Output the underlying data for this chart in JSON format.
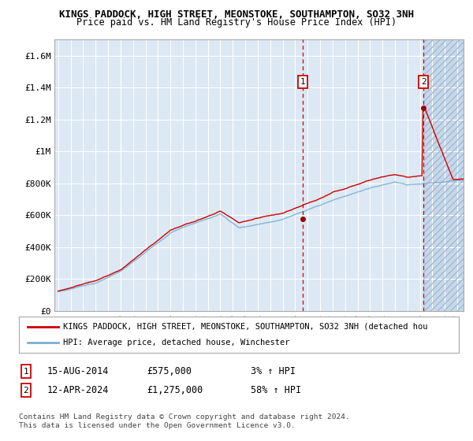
{
  "title1": "KINGS PADDOCK, HIGH STREET, MEONSTOKE, SOUTHAMPTON, SO32 3NH",
  "title2": "Price paid vs. HM Land Registry's House Price Index (HPI)",
  "ylim": [
    0,
    1700000
  ],
  "xlim_start": 1994.7,
  "xlim_end": 2027.5,
  "yticks": [
    0,
    200000,
    400000,
    600000,
    800000,
    1000000,
    1200000,
    1400000,
    1600000
  ],
  "ytick_labels": [
    "£0",
    "£200K",
    "£400K",
    "£600K",
    "£800K",
    "£1M",
    "£1.2M",
    "£1.4M",
    "£1.6M"
  ],
  "xticks": [
    1995,
    1996,
    1997,
    1998,
    1999,
    2000,
    2001,
    2002,
    2003,
    2004,
    2005,
    2006,
    2007,
    2008,
    2009,
    2010,
    2011,
    2012,
    2013,
    2014,
    2015,
    2016,
    2017,
    2018,
    2019,
    2020,
    2021,
    2022,
    2023,
    2024,
    2025,
    2026,
    2027
  ],
  "marker1_x": 2014.62,
  "marker1_y": 575000,
  "marker2_x": 2024.28,
  "marker2_y": 1275000,
  "marker1_date": "15-AUG-2014",
  "marker1_price": "£575,000",
  "marker1_hpi": "3% ↑ HPI",
  "marker2_date": "12-APR-2024",
  "marker2_price": "£1,275,000",
  "marker2_hpi": "58% ↑ HPI",
  "hatch_start": 2024.28,
  "chart_bg": "#dce8f4",
  "hatch_bg": "#c5d8ec",
  "grid_color": "#ffffff",
  "line1_color": "#cc0000",
  "line2_color": "#7bafd4",
  "legend_line1": "KINGS PADDOCK, HIGH STREET, MEONSTOKE, SOUTHAMPTON, SO32 3NH (detached hou",
  "legend_line2": "HPI: Average price, detached house, Winchester",
  "footer": "Contains HM Land Registry data © Crown copyright and database right 2024.\nThis data is licensed under the Open Government Licence v3.0."
}
